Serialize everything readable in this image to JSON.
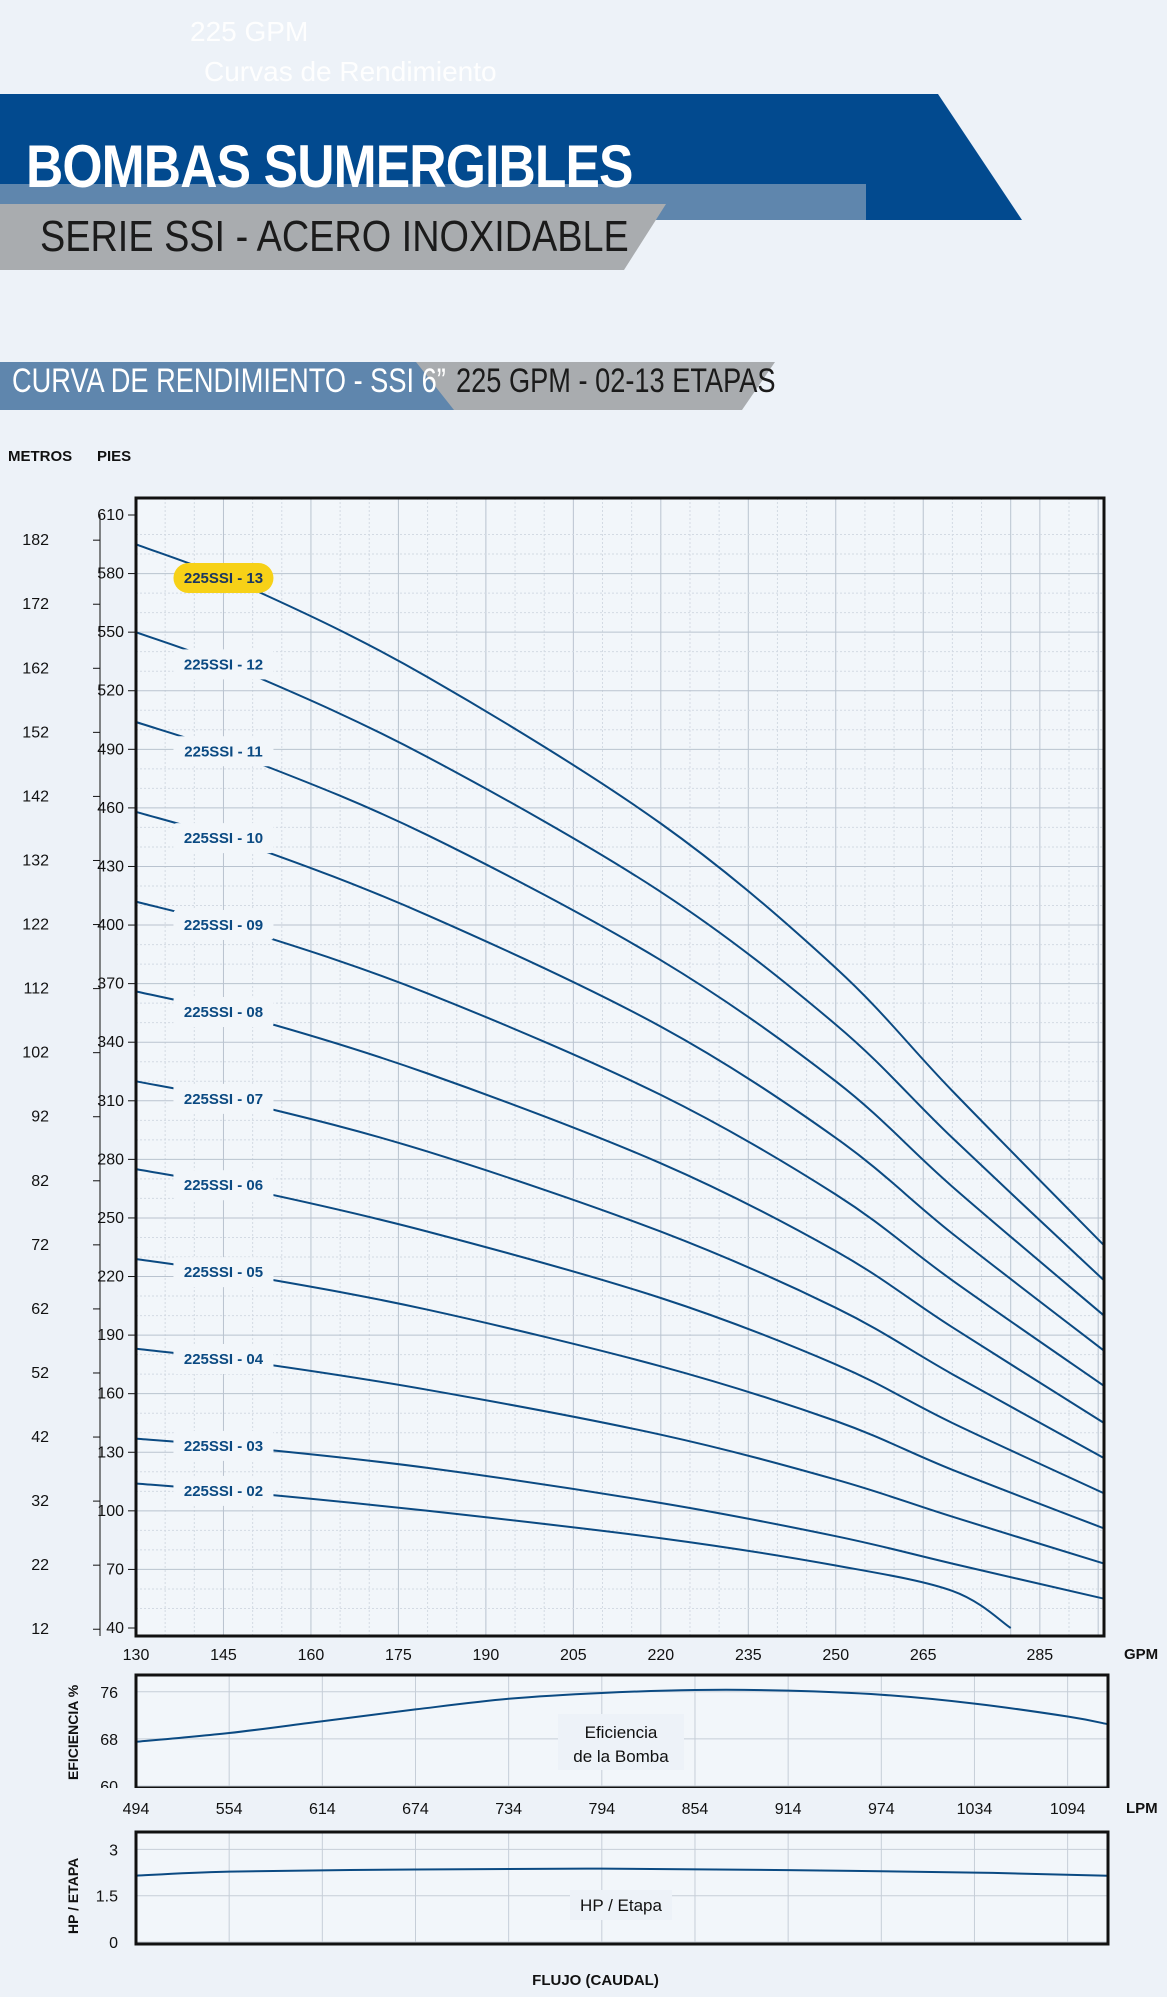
{
  "header": {
    "ghost_line1": "225 GPM",
    "ghost_line2": "Curvas de Rendimiento",
    "title": "BOMBAS SUMERGIBLES",
    "subtitle": "SERIE SSI - ACERO INOXIDABLE",
    "section_left": "CURVA DE RENDIMIENTO - SSI 6”",
    "section_right": "225 GPM - 02-13 ETAPAS"
  },
  "colors": {
    "banner_blue": "#024a8f",
    "banner_stripe": "#5f86ad",
    "banner_grey": "#a9acaf",
    "curve": "#0b4a82",
    "highlight": "#f7d117",
    "background": "#edf2f8"
  },
  "chart_data": [
    {
      "type": "line",
      "ylabel_left": "METROS",
      "ylabel_right": "PIES",
      "xlabel": "GPM",
      "xlim": [
        130,
        296
      ],
      "ylim": [
        40,
        610
      ],
      "x_ticks": [
        130,
        145,
        160,
        175,
        190,
        205,
        220,
        235,
        250,
        265,
        285
      ],
      "y_ticks": [
        40,
        70,
        100,
        130,
        160,
        190,
        220,
        250,
        280,
        310,
        340,
        370,
        400,
        430,
        460,
        490,
        520,
        550,
        580,
        610
      ],
      "meters_ticks": [
        12,
        22,
        32,
        42,
        52,
        62,
        72,
        82,
        92,
        102,
        112,
        122,
        132,
        142,
        152,
        162,
        172,
        182
      ],
      "grid": true,
      "highlighted_series": "225SSI - 13",
      "series": [
        {
          "name": "225SSI - 13",
          "points": [
            [
              130,
              595
            ],
            [
              150,
              572
            ],
            [
              180,
              527
            ],
            [
              220,
              452
            ],
            [
              250,
              378
            ],
            [
              270,
              315
            ],
            [
              296,
              236
            ]
          ]
        },
        {
          "name": "225SSI - 12",
          "points": [
            [
              130,
              550
            ],
            [
              150,
              528
            ],
            [
              180,
              486
            ],
            [
              220,
              417
            ],
            [
              250,
              349
            ],
            [
              270,
              291
            ],
            [
              296,
              218
            ]
          ]
        },
        {
          "name": "225SSI - 11",
          "points": [
            [
              130,
              504
            ],
            [
              150,
              484
            ],
            [
              180,
              446
            ],
            [
              220,
              382
            ],
            [
              250,
              320
            ],
            [
              270,
              266
            ],
            [
              296,
              200
            ]
          ]
        },
        {
          "name": "225SSI - 10",
          "points": [
            [
              130,
              458
            ],
            [
              150,
              440
            ],
            [
              180,
              405
            ],
            [
              220,
              348
            ],
            [
              250,
              291
            ],
            [
              270,
              242
            ],
            [
              296,
              182
            ]
          ]
        },
        {
          "name": "225SSI - 09",
          "points": [
            [
              130,
              412
            ],
            [
              150,
              396
            ],
            [
              180,
              365
            ],
            [
              220,
              313
            ],
            [
              250,
              262
            ],
            [
              270,
              218
            ],
            [
              296,
              164
            ]
          ]
        },
        {
          "name": "225SSI - 08",
          "points": [
            [
              130,
              366
            ],
            [
              150,
              352
            ],
            [
              180,
              324
            ],
            [
              220,
              278
            ],
            [
              250,
              233
            ],
            [
              270,
              194
            ],
            [
              296,
              145
            ]
          ]
        },
        {
          "name": "225SSI - 07",
          "points": [
            [
              130,
              320
            ],
            [
              150,
              308
            ],
            [
              180,
              284
            ],
            [
              220,
              243
            ],
            [
              250,
              204
            ],
            [
              270,
              170
            ],
            [
              296,
              127
            ]
          ]
        },
        {
          "name": "225SSI - 06",
          "points": [
            [
              130,
              275
            ],
            [
              150,
              264
            ],
            [
              180,
              243
            ],
            [
              220,
              209
            ],
            [
              250,
              175
            ],
            [
              270,
              145
            ],
            [
              296,
              109
            ]
          ]
        },
        {
          "name": "225SSI - 05",
          "points": [
            [
              130,
              229
            ],
            [
              150,
              220
            ],
            [
              180,
              203
            ],
            [
              220,
              174
            ],
            [
              250,
              146
            ],
            [
              270,
              121
            ],
            [
              296,
              91
            ]
          ]
        },
        {
          "name": "225SSI - 04",
          "points": [
            [
              130,
              183
            ],
            [
              150,
              176
            ],
            [
              180,
              162
            ],
            [
              220,
              139
            ],
            [
              250,
              116
            ],
            [
              270,
              97
            ],
            [
              296,
              73
            ]
          ]
        },
        {
          "name": "225SSI - 03",
          "points": [
            [
              130,
              137
            ],
            [
              150,
              132
            ],
            [
              180,
              122
            ],
            [
              220,
              104
            ],
            [
              250,
              87
            ],
            [
              270,
              73
            ],
            [
              296,
              55
            ]
          ]
        },
        {
          "name": "225SSI - 02",
          "points": [
            [
              130,
              114
            ],
            [
              150,
              109
            ],
            [
              180,
              100
            ],
            [
              220,
              86
            ],
            [
              250,
              72
            ],
            [
              270,
              59
            ],
            [
              280,
              40
            ]
          ]
        }
      ]
    },
    {
      "type": "line",
      "ylabel": "EFICIENCIA %",
      "xlabel": "LPM",
      "annotation": [
        "Eficiencia",
        "de la Bomba"
      ],
      "ylim": [
        60,
        78
      ],
      "y_ticks": [
        60,
        68,
        76
      ],
      "x_ticks": [
        494,
        554,
        614,
        674,
        734,
        794,
        854,
        914,
        974,
        1034,
        1094
      ],
      "grid": true,
      "series": [
        {
          "points": [
            [
              494,
              67.5
            ],
            [
              554,
              69.0
            ],
            [
              614,
              71.0
            ],
            [
              674,
              73.0
            ],
            [
              734,
              74.8
            ],
            [
              794,
              75.8
            ],
            [
              854,
              76.3
            ],
            [
              914,
              76.2
            ],
            [
              974,
              75.5
            ],
            [
              1034,
              74.0
            ],
            [
              1094,
              71.8
            ],
            [
              1120,
              70.5
            ]
          ]
        }
      ]
    },
    {
      "type": "line",
      "ylabel": "HP / ETAPA",
      "xlabel": "FLUJO (CAUDAL)",
      "annotation": [
        "HP / Etapa"
      ],
      "ylim": [
        0,
        3.5
      ],
      "y_ticks": [
        0,
        1.5,
        3
      ],
      "grid": true,
      "series": [
        {
          "points": [
            [
              494,
              2.15
            ],
            [
              554,
              2.28
            ],
            [
              674,
              2.35
            ],
            [
              794,
              2.38
            ],
            [
              914,
              2.33
            ],
            [
              1034,
              2.25
            ],
            [
              1120,
              2.15
            ]
          ]
        }
      ]
    }
  ]
}
